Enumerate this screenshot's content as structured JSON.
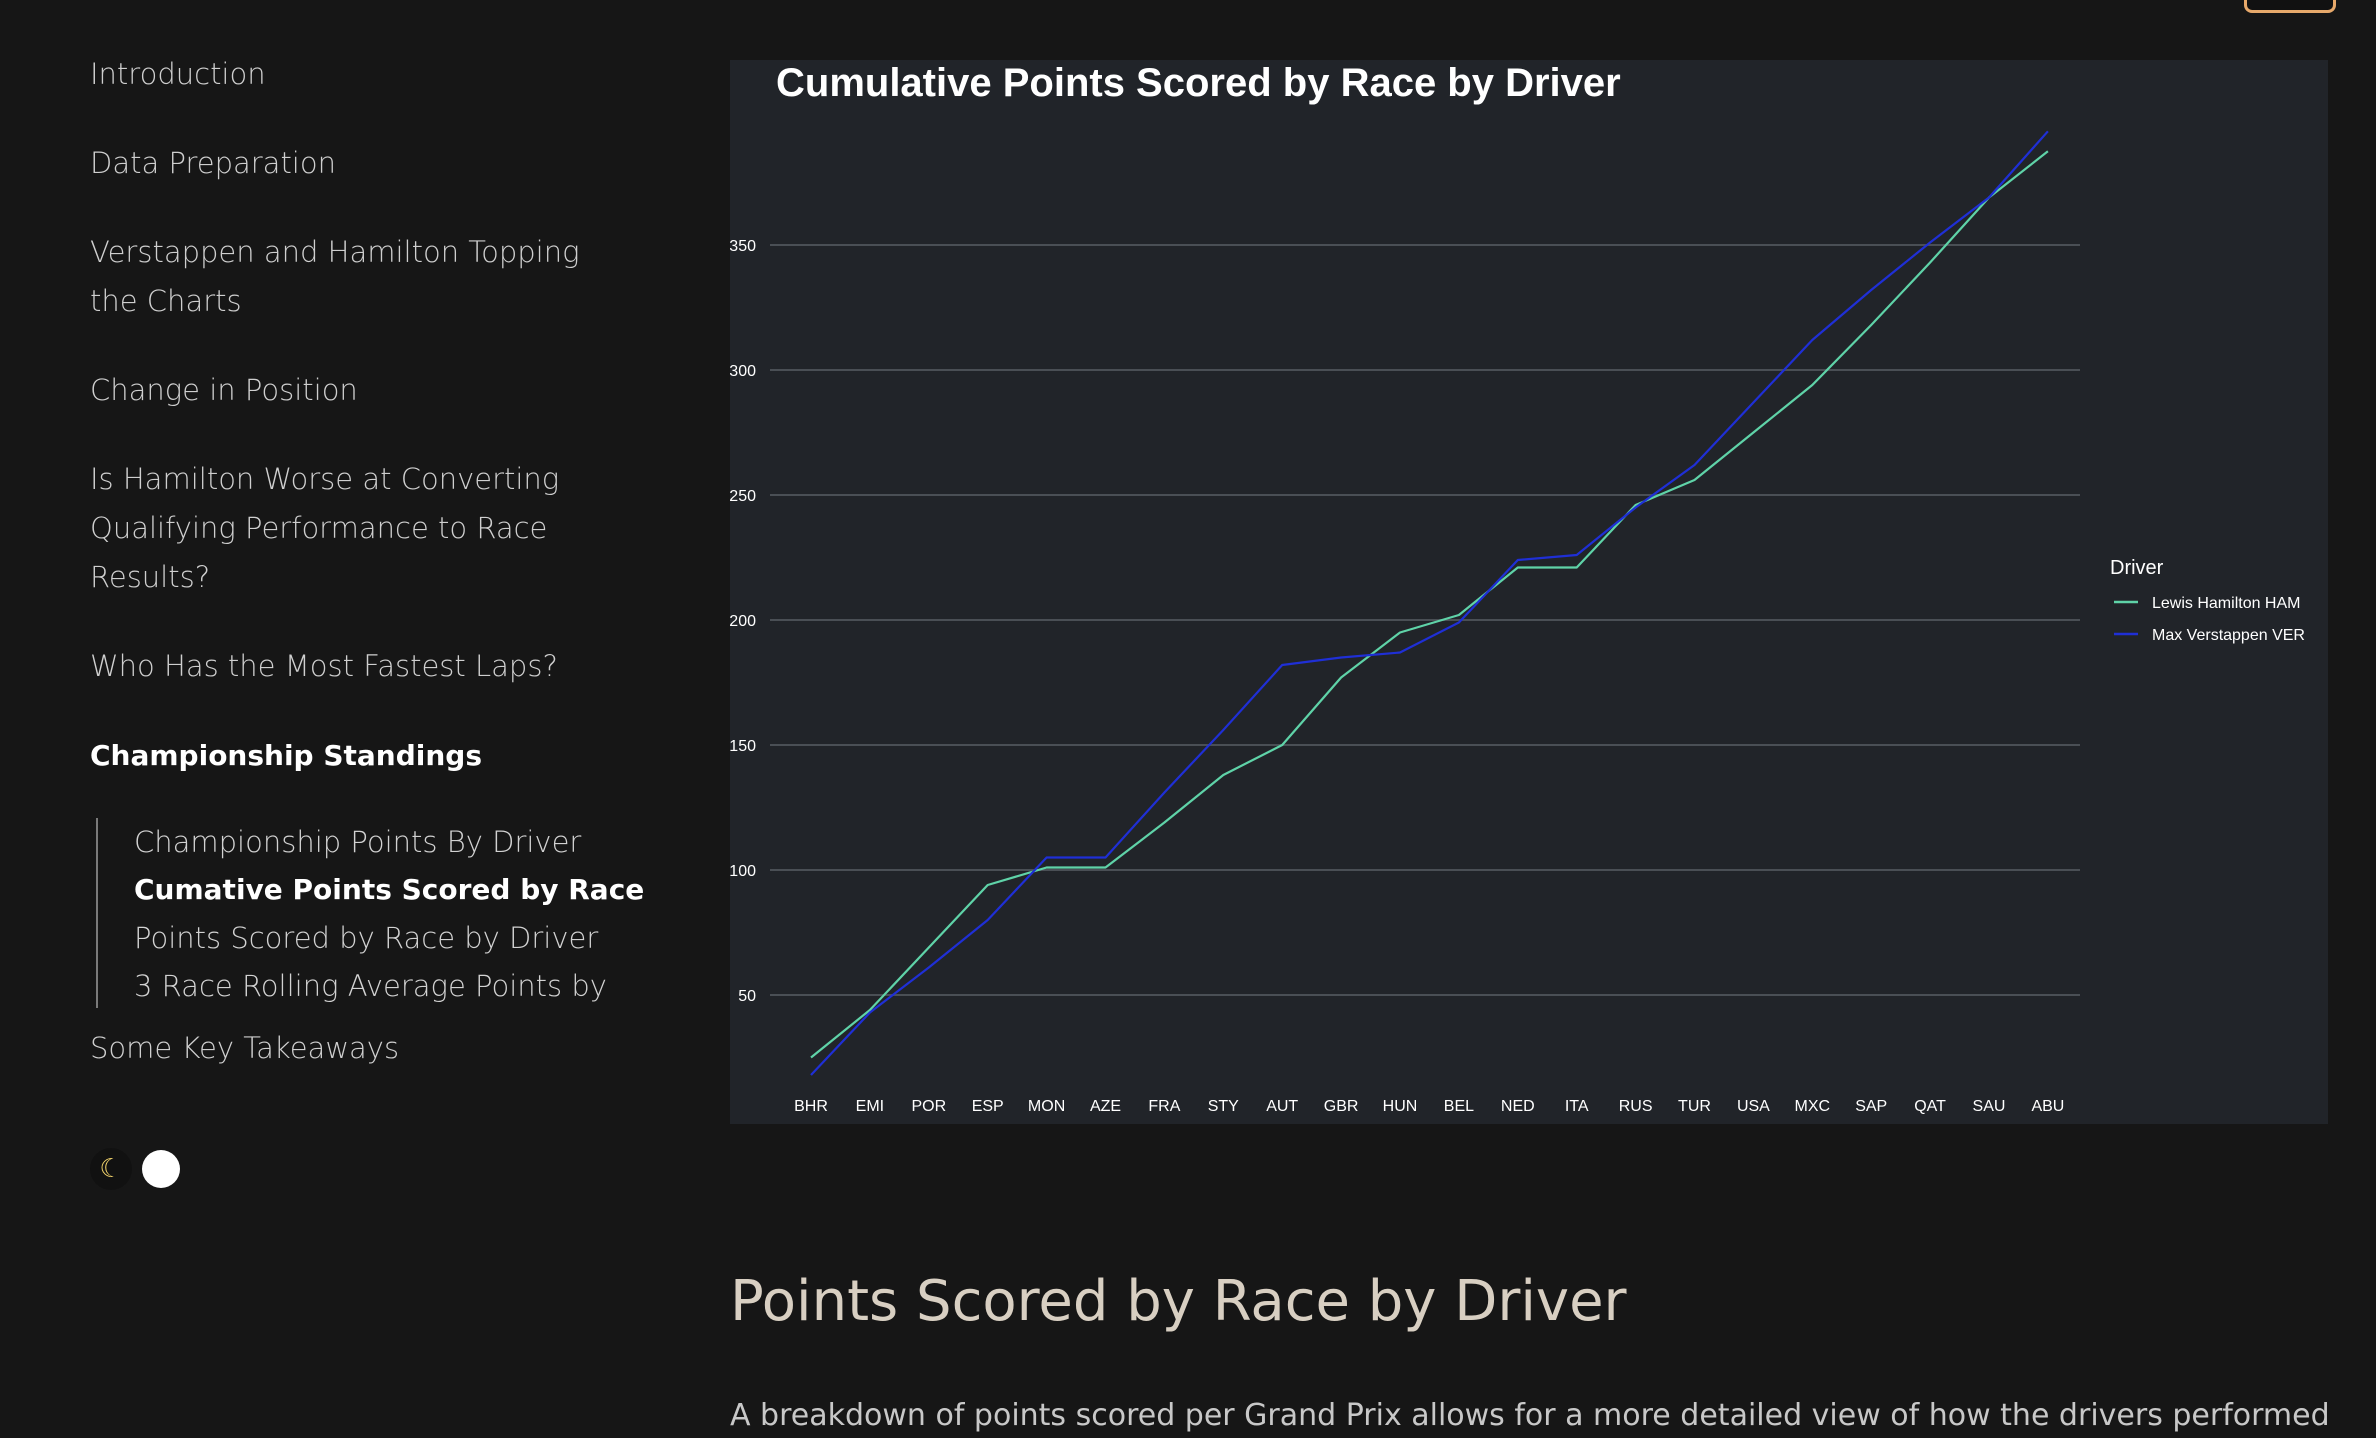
{
  "sidebar": {
    "items": [
      {
        "label": "Introduction"
      },
      {
        "label": "Data Preparation"
      },
      {
        "label": "Verstappen and Hamilton Topping the Charts",
        "line1": "Verstappen and Hamilton Topping",
        "line2": "the Charts"
      },
      {
        "label": "Change in Position"
      },
      {
        "label": "Is Hamilton Worse at Converting Qualifying Performance to Race Results?",
        "line1": "Is Hamilton Worse at Converting",
        "line2": "Qualifying Performance to Race",
        "line3": "Results?"
      },
      {
        "label": "Who Has the Most Fastest Laps?"
      },
      {
        "label": "Championship Standings"
      },
      {
        "label": "Some Key Takeaways"
      }
    ],
    "sub_items": [
      {
        "label": "Championship Points By Driver"
      },
      {
        "label": "Cumative Points Scored by Race"
      },
      {
        "label": "Points Scored by Race by Driver"
      },
      {
        "label": "3 Race Rolling Average Points by"
      }
    ]
  },
  "theme_toggle": {
    "dark_icon": "moon-icon",
    "light_icon": "sun-icon"
  },
  "chart_data": {
    "type": "line",
    "title": "Cumulative Points Scored by Race by Driver",
    "xlabel": "",
    "ylabel": "",
    "categories": [
      "BHR",
      "EMI",
      "POR",
      "ESP",
      "MON",
      "AZE",
      "FRA",
      "STY",
      "AUT",
      "GBR",
      "HUN",
      "BEL",
      "NED",
      "ITA",
      "RUS",
      "TUR",
      "USA",
      "MXC",
      "SAP",
      "QAT",
      "SAU",
      "ABU"
    ],
    "yticks": [
      50,
      100,
      150,
      200,
      250,
      300,
      350
    ],
    "ylim": [
      12,
      400
    ],
    "grid": true,
    "legend_title": "Driver",
    "legend_position": "right",
    "series": [
      {
        "name": "Lewis Hamilton HAM",
        "color": "#5fd3a8",
        "values": [
          25,
          44,
          69,
          94,
          101,
          101,
          119,
          138,
          150,
          177,
          195,
          202,
          221,
          221,
          246,
          256,
          275,
          294,
          318,
          343,
          369,
          387.5
        ]
      },
      {
        "name": "Max Verstappen VER",
        "color": "#1f2fd6",
        "values": [
          18,
          43,
          61,
          80,
          105,
          105,
          131,
          156,
          182,
          185,
          187,
          199,
          224,
          226,
          245,
          262,
          287,
          312,
          332,
          351,
          369,
          395.5
        ]
      }
    ]
  },
  "section": {
    "heading": "Points Scored by Race by Driver",
    "paragraph": "A breakdown of points scored per Grand Prix allows for a more detailed view of how the drivers performed"
  }
}
